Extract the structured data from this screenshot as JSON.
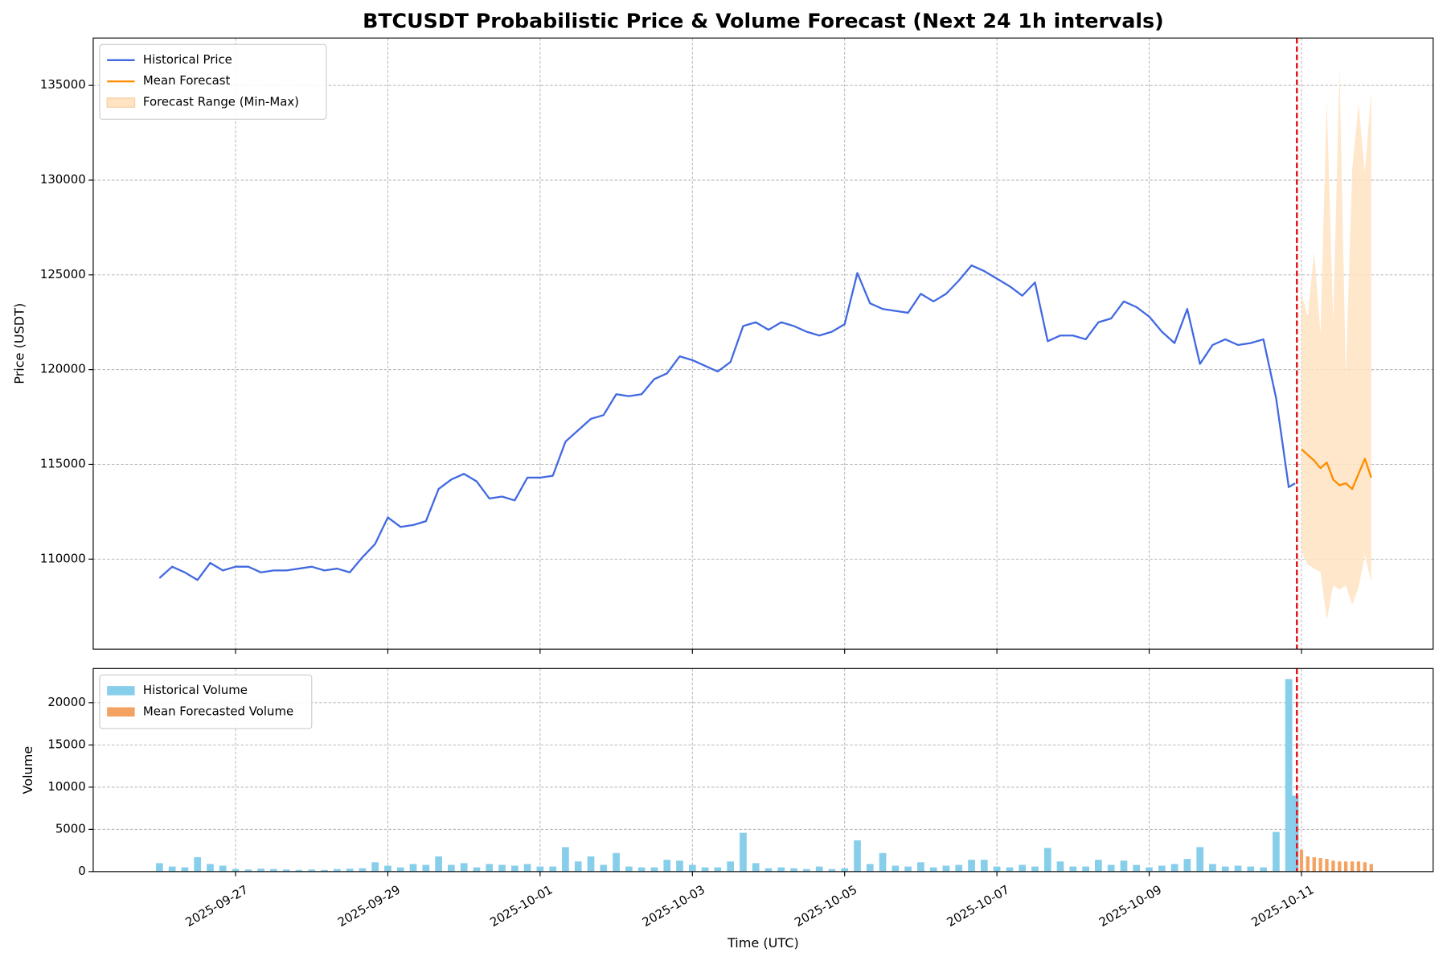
{
  "chart_data": [
    {
      "type": "line",
      "title": "BTCUSDT Probabilistic Price & Volume Forecast (Next 24 1h intervals)",
      "y_label": "Price (USDT)",
      "xlim": [
        20356.13,
        20373.73
      ],
      "xticks": [
        20358,
        20360,
        20362,
        20364,
        20366,
        20368,
        20370,
        20372
      ],
      "ylim": [
        105250,
        137500
      ],
      "yticks": [
        110000,
        115000,
        120000,
        125000,
        130000,
        135000
      ],
      "grid": true,
      "legend": "upper left",
      "forecast_start": {
        "x": 20371.94,
        "color": "#e31a1c"
      },
      "series": [
        {
          "name": "Historical Price",
          "type": "line",
          "color": "#4169e1",
          "x": [
            20357,
            20357.167,
            20357.333,
            20357.5,
            20357.667,
            20357.833,
            20358,
            20358.167,
            20358.333,
            20358.5,
            20358.667,
            20358.833,
            20359,
            20359.167,
            20359.333,
            20359.5,
            20359.667,
            20359.833,
            20360,
            20360.167,
            20360.333,
            20360.5,
            20360.667,
            20360.833,
            20361,
            20361.167,
            20361.333,
            20361.5,
            20361.667,
            20361.833,
            20362,
            20362.167,
            20362.333,
            20362.5,
            20362.667,
            20362.833,
            20363,
            20363.167,
            20363.333,
            20363.5,
            20363.667,
            20363.833,
            20364,
            20364.167,
            20364.333,
            20364.5,
            20364.667,
            20364.833,
            20365,
            20365.167,
            20365.333,
            20365.5,
            20365.667,
            20365.833,
            20366,
            20366.167,
            20366.333,
            20366.5,
            20366.667,
            20366.833,
            20367,
            20367.167,
            20367.333,
            20367.5,
            20367.667,
            20367.833,
            20368,
            20368.167,
            20368.333,
            20368.5,
            20368.667,
            20368.833,
            20369,
            20369.167,
            20369.333,
            20369.5,
            20369.667,
            20369.833,
            20370,
            20370.167,
            20370.333,
            20370.5,
            20370.667,
            20370.833,
            20371,
            20371.167,
            20371.333,
            20371.5,
            20371.667,
            20371.833,
            20371.917
          ],
          "values": [
            109000,
            109600,
            109300,
            108900,
            109800,
            109400,
            109600,
            109600,
            109300,
            109400,
            109400,
            109500,
            109600,
            109400,
            109500,
            109300,
            110100,
            110800,
            112200,
            111700,
            111800,
            112000,
            113700,
            114200,
            114500,
            114100,
            113200,
            113300,
            113100,
            114300,
            114300,
            114400,
            116200,
            116800,
            117400,
            117600,
            118700,
            118600,
            118700,
            119500,
            119800,
            120700,
            120500,
            120200,
            119900,
            120400,
            122300,
            122500,
            122100,
            122500,
            122300,
            122000,
            121800,
            122000,
            122400,
            125100,
            123500,
            123200,
            123100,
            123000,
            124000,
            123600,
            124000,
            124700,
            125500,
            125200,
            124800,
            124400,
            123900,
            124600,
            121500,
            121800,
            121800,
            121600,
            122500,
            122700,
            123600,
            123300,
            122800,
            122000,
            121400,
            123200,
            120300,
            121300,
            121600,
            121300,
            121400,
            121600,
            118500,
            113800,
            114000
          ]
        },
        {
          "name": "Mean Forecast",
          "type": "line",
          "color": "#ff8c00",
          "x": [
            20372,
            20372.083,
            20372.167,
            20372.25,
            20372.333,
            20372.417,
            20372.5,
            20372.583,
            20372.667,
            20372.75,
            20372.833,
            20372.917
          ],
          "values": [
            115800,
            115500,
            115200,
            114800,
            115100,
            114200,
            113900,
            114000,
            113700,
            114500,
            115300,
            114300
          ]
        },
        {
          "name": "Forecast Range (Min-Max)",
          "type": "band",
          "color": "#ffe3c2",
          "x": [
            20372,
            20372.083,
            20372.167,
            20372.25,
            20372.333,
            20372.417,
            20372.5,
            20372.583,
            20372.667,
            20372.75,
            20372.833,
            20372.917
          ],
          "low": [
            110400,
            109700,
            109500,
            109300,
            106800,
            108600,
            108400,
            108600,
            107600,
            108500,
            110200,
            108800
          ],
          "high": [
            124000,
            122800,
            126200,
            121900,
            134200,
            122500,
            135900,
            119700,
            130600,
            134000,
            130400,
            134700
          ]
        }
      ]
    },
    {
      "type": "bar",
      "x_label": "Time (UTC)",
      "y_label": "Volume",
      "xlim": [
        20356.13,
        20373.73
      ],
      "xticks": [
        {
          "value": 20358,
          "label": "2025-09-27"
        },
        {
          "value": 20360,
          "label": "2025-09-29"
        },
        {
          "value": 20362,
          "label": "2025-10-01"
        },
        {
          "value": 20364,
          "label": "2025-10-03"
        },
        {
          "value": 20366,
          "label": "2025-10-05"
        },
        {
          "value": 20368,
          "label": "2025-10-07"
        },
        {
          "value": 20370,
          "label": "2025-10-09"
        },
        {
          "value": 20372,
          "label": "2025-10-11"
        }
      ],
      "ylim": [
        0,
        24050
      ],
      "yticks": [
        0,
        5000,
        10000,
        15000,
        20000
      ],
      "grid": true,
      "legend": "upper left",
      "forecast_start": {
        "x": 20371.94,
        "color": "#e31a1c"
      },
      "series": [
        {
          "name": "Historical Volume",
          "color": "#87ceeb",
          "x": [
            20357,
            20357.167,
            20357.333,
            20357.5,
            20357.667,
            20357.833,
            20358,
            20358.167,
            20358.333,
            20358.5,
            20358.667,
            20358.833,
            20359,
            20359.167,
            20359.333,
            20359.5,
            20359.667,
            20359.833,
            20360,
            20360.167,
            20360.333,
            20360.5,
            20360.667,
            20360.833,
            20361,
            20361.167,
            20361.333,
            20361.5,
            20361.667,
            20361.833,
            20362,
            20362.167,
            20362.333,
            20362.5,
            20362.667,
            20362.833,
            20363,
            20363.167,
            20363.333,
            20363.5,
            20363.667,
            20363.833,
            20364,
            20364.167,
            20364.333,
            20364.5,
            20364.667,
            20364.833,
            20365,
            20365.167,
            20365.333,
            20365.5,
            20365.667,
            20365.833,
            20366,
            20366.167,
            20366.333,
            20366.5,
            20366.667,
            20366.833,
            20367,
            20367.167,
            20367.333,
            20367.5,
            20367.667,
            20367.833,
            20368,
            20368.167,
            20368.333,
            20368.5,
            20368.667,
            20368.833,
            20369,
            20369.167,
            20369.333,
            20369.5,
            20369.667,
            20369.833,
            20370,
            20370.167,
            20370.333,
            20370.5,
            20370.667,
            20370.833,
            20371,
            20371.167,
            20371.333,
            20371.5,
            20371.667,
            20371.833,
            20371.917
          ],
          "values": [
            1000,
            600,
            500,
            1700,
            900,
            700,
            300,
            250,
            350,
            300,
            250,
            200,
            250,
            200,
            300,
            350,
            400,
            1100,
            700,
            500,
            900,
            800,
            1800,
            800,
            1000,
            500,
            900,
            800,
            700,
            900,
            600,
            600,
            2900,
            1200,
            1800,
            800,
            2200,
            600,
            500,
            500,
            1400,
            1300,
            800,
            500,
            500,
            1200,
            4600,
            1000,
            400,
            500,
            400,
            300,
            600,
            300,
            400,
            3700,
            900,
            2200,
            700,
            600,
            1100,
            500,
            700,
            800,
            1400,
            1400,
            600,
            500,
            800,
            600,
            2800,
            1200,
            600,
            600,
            1400,
            800,
            1300,
            800,
            500,
            700,
            900,
            1500,
            2900,
            900,
            600,
            700,
            600,
            500,
            4700,
            22800,
            9000
          ]
        },
        {
          "name": "Mean Forecasted Volume",
          "color": "#f4a261",
          "x": [
            20372,
            20372.083,
            20372.167,
            20372.25,
            20372.333,
            20372.417,
            20372.5,
            20372.583,
            20372.667,
            20372.75,
            20372.833,
            20372.917
          ],
          "values": [
            2600,
            1800,
            1700,
            1600,
            1500,
            1300,
            1200,
            1200,
            1200,
            1200,
            1100,
            900
          ]
        }
      ]
    }
  ]
}
